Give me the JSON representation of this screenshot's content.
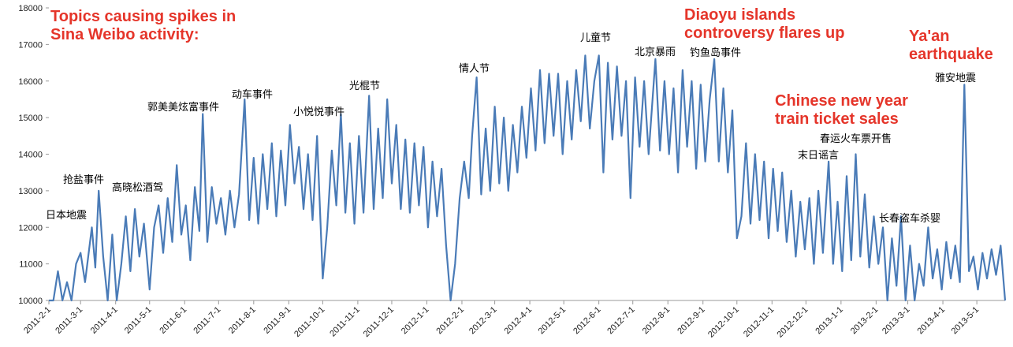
{
  "chart_data": {
    "type": "line",
    "annotations": [
      {
        "lines": [
          "Topics causing spikes in",
          "Sina Weibo activity:"
        ]
      },
      {
        "lines": [
          "Diaoyu islands",
          "controversy flares up"
        ]
      },
      {
        "lines": [
          "Ya'an",
          "earthquake"
        ]
      },
      {
        "lines": [
          "Chinese new year",
          "train ticket sales"
        ]
      }
    ],
    "labels": [
      "日本地震",
      "抢盐事件",
      "高晓松酒驾",
      "郭美美炫富事件",
      "动车事件",
      "小悦悦事件",
      "光棍节",
      "情人节",
      "儿童节",
      "北京暴雨",
      "钓鱼岛事件",
      "末日谣言",
      "春运火车票开售",
      "长春盗车杀婴",
      "雅安地震"
    ],
    "x": [
      "2011-2-1",
      "2011-2-5",
      "2011-2-9",
      "2011-2-13",
      "2011-2-17",
      "2011-2-21",
      "2011-2-25",
      "2011-3-1",
      "2011-3-5",
      "2011-3-11",
      "2011-3-14",
      "2011-3-17",
      "2011-3-21",
      "2011-3-25",
      "2011-3-29",
      "2011-4-2",
      "2011-4-6",
      "2011-4-10",
      "2011-4-14",
      "2011-4-18",
      "2011-4-22",
      "2011-4-26",
      "2011-5-1",
      "2011-5-5",
      "2011-5-9",
      "2011-5-13",
      "2011-5-17",
      "2011-5-21",
      "2011-5-25",
      "2011-5-29",
      "2011-6-2",
      "2011-6-6",
      "2011-6-10",
      "2011-6-14",
      "2011-6-17",
      "2011-6-21",
      "2011-6-25",
      "2011-6-29",
      "2011-7-3",
      "2011-7-7",
      "2011-7-11",
      "2011-7-15",
      "2011-7-19",
      "2011-7-24",
      "2011-7-28",
      "2011-8-1",
      "2011-8-5",
      "2011-8-9",
      "2011-8-13",
      "2011-8-17",
      "2011-8-21",
      "2011-8-25",
      "2011-8-29",
      "2011-9-2",
      "2011-9-6",
      "2011-9-10",
      "2011-9-14",
      "2011-9-18",
      "2011-9-22",
      "2011-9-26",
      "2011-10-1",
      "2011-10-5",
      "2011-10-9",
      "2011-10-13",
      "2011-10-17",
      "2011-10-21",
      "2011-10-25",
      "2011-10-29",
      "2011-11-2",
      "2011-11-6",
      "2011-11-11",
      "2011-11-15",
      "2011-11-19",
      "2011-11-23",
      "2011-11-27",
      "2011-12-1",
      "2011-12-5",
      "2011-12-9",
      "2011-12-13",
      "2011-12-17",
      "2011-12-21",
      "2011-12-25",
      "2011-12-29",
      "2012-1-2",
      "2012-1-6",
      "2012-1-10",
      "2012-1-14",
      "2012-1-18",
      "2012-1-22",
      "2012-1-26",
      "2012-1-30",
      "2012-2-3",
      "2012-2-7",
      "2012-2-10",
      "2012-2-14",
      "2012-2-18",
      "2012-2-22",
      "2012-2-26",
      "2012-3-1",
      "2012-3-5",
      "2012-3-9",
      "2012-3-13",
      "2012-3-17",
      "2012-3-21",
      "2012-3-25",
      "2012-3-29",
      "2012-4-2",
      "2012-4-6",
      "2012-4-10",
      "2012-4-14",
      "2012-4-18",
      "2012-4-22",
      "2012-4-26",
      "2012-4-30",
      "2012-5-4",
      "2012-5-8",
      "2012-5-12",
      "2012-5-16",
      "2012-5-20",
      "2012-5-24",
      "2012-5-28",
      "2012-6-1",
      "2012-6-5",
      "2012-6-9",
      "2012-6-13",
      "2012-6-17",
      "2012-6-21",
      "2012-6-25",
      "2012-6-29",
      "2012-7-3",
      "2012-7-7",
      "2012-7-11",
      "2012-7-15",
      "2012-7-21",
      "2012-7-25",
      "2012-7-29",
      "2012-8-2",
      "2012-8-6",
      "2012-8-10",
      "2012-8-14",
      "2012-8-18",
      "2012-8-22",
      "2012-8-26",
      "2012-8-30",
      "2012-9-3",
      "2012-9-7",
      "2012-9-11",
      "2012-9-15",
      "2012-9-19",
      "2012-9-23",
      "2012-9-27",
      "2012-10-1",
      "2012-10-5",
      "2012-10-9",
      "2012-10-13",
      "2012-10-17",
      "2012-10-21",
      "2012-10-25",
      "2012-10-29",
      "2012-11-2",
      "2012-11-6",
      "2012-11-10",
      "2012-11-14",
      "2012-11-18",
      "2012-11-22",
      "2012-11-26",
      "2012-11-30",
      "2012-12-4",
      "2012-12-8",
      "2012-12-12",
      "2012-12-16",
      "2012-12-21",
      "2012-12-25",
      "2012-12-29",
      "2013-1-2",
      "2013-1-6",
      "2013-1-10",
      "2013-1-14",
      "2013-1-18",
      "2013-1-22",
      "2013-1-26",
      "2013-1-30",
      "2013-2-3",
      "2013-2-7",
      "2013-2-11",
      "2013-2-15",
      "2013-2-19",
      "2013-2-23",
      "2013-2-27",
      "2013-3-3",
      "2013-3-7",
      "2013-3-11",
      "2013-3-15",
      "2013-3-19",
      "2013-3-23",
      "2013-3-27",
      "2013-3-31",
      "2013-4-4",
      "2013-4-8",
      "2013-4-12",
      "2013-4-16",
      "2013-4-20",
      "2013-4-24",
      "2013-4-28",
      "2013-5-2",
      "2013-5-6",
      "2013-5-10",
      "2013-5-14",
      "2013-5-18",
      "2013-5-22",
      "2013-5-26"
    ],
    "series": [
      {
        "color": "#4a7bb7",
        "values": [
          10000,
          10000,
          10800,
          10000,
          10500,
          10000,
          11000,
          11300,
          10500,
          12000,
          10900,
          13000,
          11200,
          10000,
          11800,
          10000,
          11000,
          12300,
          10800,
          12500,
          11200,
          12100,
          10300,
          12000,
          12600,
          11300,
          12800,
          11600,
          13700,
          11800,
          12600,
          11100,
          13100,
          11900,
          15100,
          11600,
          13100,
          12100,
          12800,
          11800,
          13000,
          12000,
          12900,
          15500,
          12200,
          13900,
          12100,
          14000,
          12500,
          14300,
          12300,
          14100,
          12600,
          14800,
          13200,
          14200,
          12500,
          14000,
          12200,
          14500,
          10600,
          12000,
          14100,
          12600,
          15100,
          12400,
          14300,
          12100,
          14500,
          12400,
          15600,
          12500,
          14700,
          12800,
          15500,
          13200,
          14800,
          12500,
          14400,
          12400,
          14300,
          12600,
          14200,
          12000,
          13800,
          12300,
          13600,
          11500,
          10000,
          11000,
          12800,
          13800,
          12800,
          14500,
          16100,
          12900,
          14700,
          13000,
          15300,
          13200,
          15000,
          13000,
          14800,
          13500,
          15300,
          13900,
          15800,
          14100,
          16300,
          14300,
          16200,
          14500,
          16200,
          14000,
          16000,
          14400,
          16300,
          14900,
          16700,
          14700,
          16000,
          16700,
          13500,
          16500,
          14400,
          16400,
          14500,
          16000,
          12800,
          16100,
          14200,
          16000,
          14000,
          16600,
          14100,
          16000,
          14000,
          15800,
          13500,
          16300,
          14200,
          16000,
          13600,
          15900,
          13800,
          15500,
          16600,
          13800,
          15800,
          13500,
          15200,
          11700,
          12300,
          14300,
          12100,
          14000,
          12200,
          13800,
          11700,
          13600,
          11900,
          13500,
          11600,
          13000,
          11200,
          12700,
          11400,
          12800,
          11000,
          13000,
          11300,
          13800,
          11000,
          12700,
          10800,
          13400,
          11100,
          14000,
          11200,
          12900,
          10900,
          12300,
          11000,
          12000,
          10000,
          11700,
          10400,
          12300,
          10000,
          11500,
          10000,
          11000,
          10400,
          12000,
          10600,
          11400,
          10300,
          11600,
          10600,
          11500,
          10500,
          15900,
          10800,
          11200,
          10300,
          11300,
          10600,
          11400,
          10700,
          11500,
          10000
        ]
      }
    ],
    "xlim": [
      "2011-2-1",
      "2013-5-26"
    ],
    "xticks": [
      "2011-2-1",
      "2011-3-1",
      "2011-4-1",
      "2011-5-1",
      "2011-6-1",
      "2011-7-1",
      "2011-8-1",
      "2011-9-1",
      "2011-10-1",
      "2011-11-1",
      "2011-12-1",
      "2012-1-1",
      "2012-2-1",
      "2012-3-1",
      "2012-4-1",
      "2012-5-1",
      "2012-6-1",
      "2012-7-1",
      "2012-8-1",
      "2012-9-1",
      "2012-10-1",
      "2012-11-1",
      "2012-12-1",
      "2013-1-1",
      "2013-2-1",
      "2013-3-1",
      "2013-4-1",
      "2013-5-1"
    ],
    "ylim": [
      10000,
      18000
    ],
    "yticks": [
      10000,
      11000,
      12000,
      13000,
      14000,
      15000,
      16000,
      17000,
      18000
    ],
    "grid": false
  }
}
